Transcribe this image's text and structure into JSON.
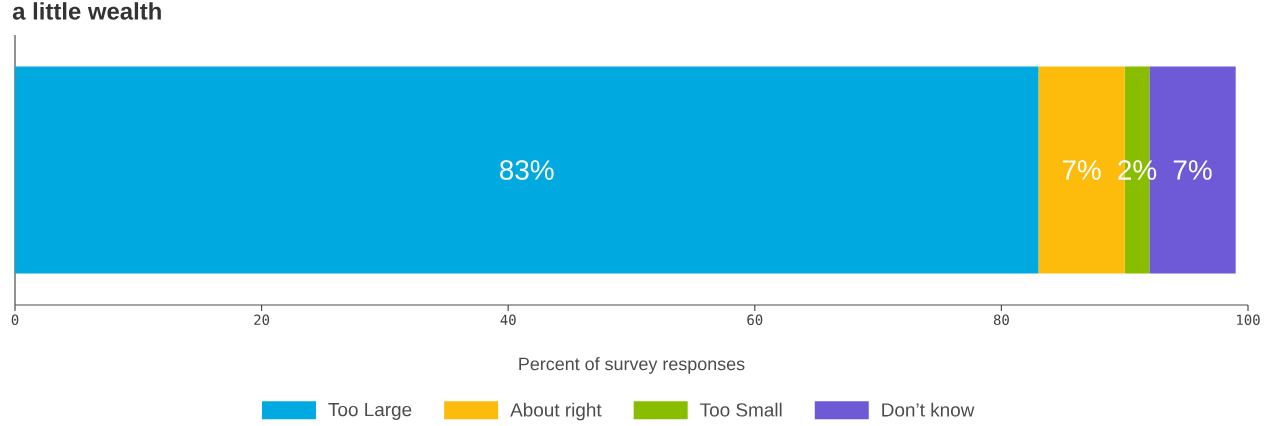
{
  "chart_data": {
    "type": "bar",
    "orientation": "horizontal",
    "stacked": true,
    "title": "a little wealth",
    "xlabel": "Percent of survey responses",
    "categories": [
      null
    ],
    "series": [
      {
        "name": "Too Large",
        "color": "#00a9e0",
        "values": [
          83
        ],
        "value_labels": [
          "83%"
        ]
      },
      {
        "name": "About right",
        "color": "#fdbb0c",
        "values": [
          7
        ],
        "value_labels": [
          "7%"
        ]
      },
      {
        "name": "Too Small",
        "color": "#88bd00",
        "values": [
          2
        ],
        "value_labels": [
          "2%"
        ]
      },
      {
        "name": "Don’t know",
        "color": "#6e59d6",
        "values": [
          7
        ],
        "value_labels": [
          "7%"
        ]
      }
    ],
    "xlim": [
      0,
      100
    ],
    "xticks": [
      0,
      20,
      40,
      60,
      80,
      100
    ],
    "grid": false,
    "legend": "bottom"
  }
}
